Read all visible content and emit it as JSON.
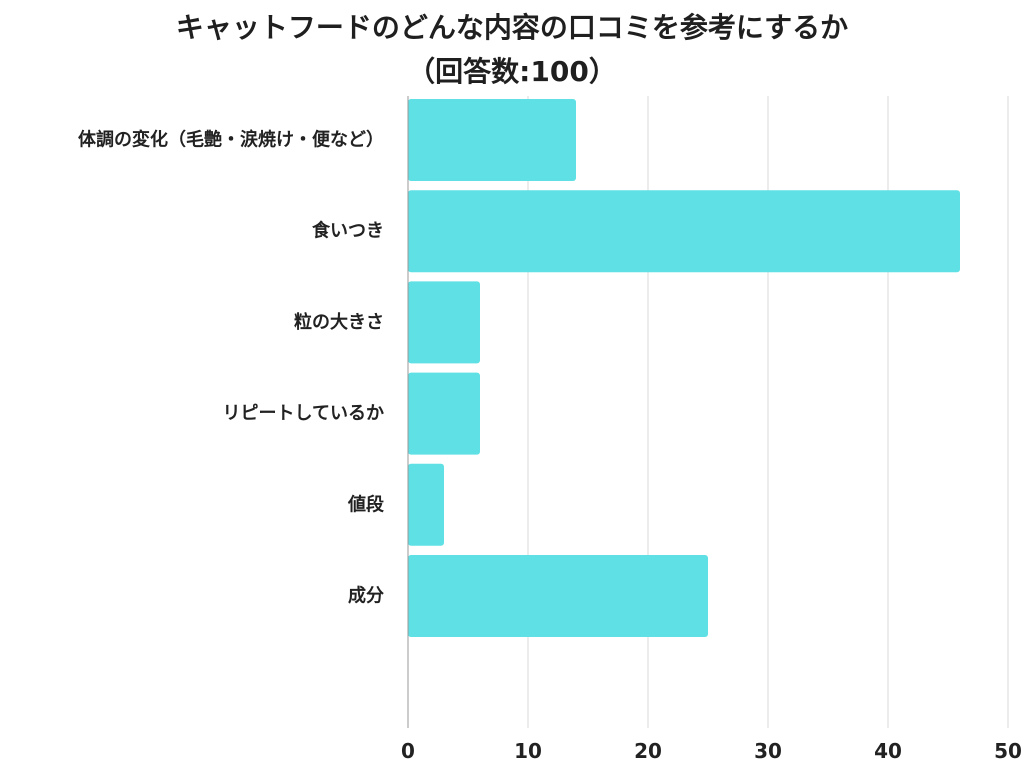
{
  "chart_data": {
    "type": "bar",
    "orientation": "horizontal",
    "title": "キャットフードのどんな内容の口コミを参考にするか",
    "subtitle": "（回答数:100）",
    "categories": [
      "体調の変化（毛艶・涙焼け・便など）",
      "食いつき",
      "粒の大きさ",
      "リピートしているか",
      "値段",
      "成分"
    ],
    "values": [
      14,
      46,
      6,
      6,
      3,
      25
    ],
    "xlim": [
      0,
      50
    ],
    "xticks": [
      "0",
      "10",
      "20",
      "30",
      "40",
      "50"
    ],
    "grid": "vertical",
    "bar_color": "#5ee0e4",
    "grid_color": "#d9d9d9",
    "axis_color": "#999999"
  }
}
